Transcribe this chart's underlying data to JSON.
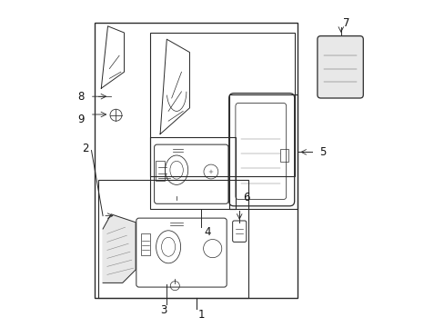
{
  "bg_color": "#ffffff",
  "line_color": "#2a2a2a",
  "label_color": "#111111",
  "figsize": [
    4.89,
    3.6
  ],
  "dpi": 100
}
